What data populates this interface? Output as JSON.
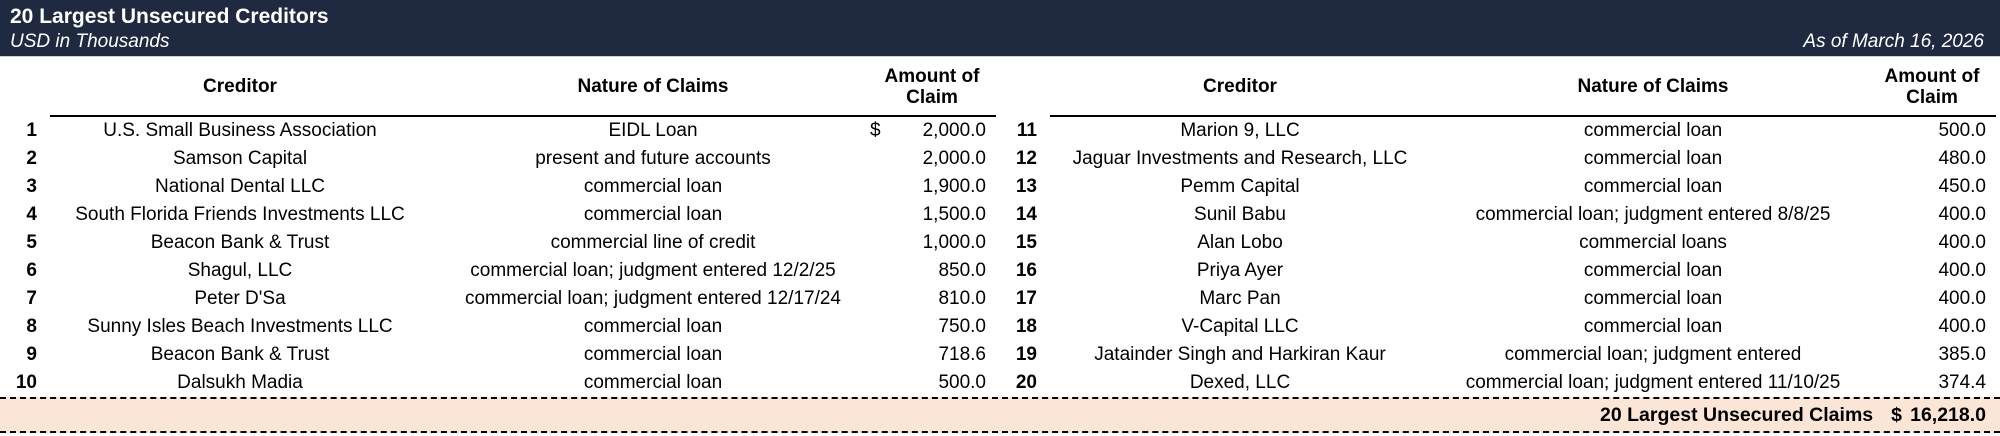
{
  "header": {
    "title": "20 Largest Unsecured Creditors",
    "subtitle": "USD in Thousands",
    "as_of": "As of March 16, 2026",
    "bg_color": "#1F2A40"
  },
  "columns": {
    "creditor": "Creditor",
    "nature": "Nature of Claims",
    "amount_line1": "Amount of",
    "amount_line2": "Claim"
  },
  "left_table": {
    "rows": [
      {
        "num": "1",
        "creditor": "U.S. Small Business Association",
        "nature": "EIDL Loan",
        "currency": "$",
        "amount": "2,000.0"
      },
      {
        "num": "2",
        "creditor": "Samson Capital",
        "nature": "present and future accounts",
        "currency": "",
        "amount": "2,000.0"
      },
      {
        "num": "3",
        "creditor": "National Dental LLC",
        "nature": "commercial loan",
        "currency": "",
        "amount": "1,900.0"
      },
      {
        "num": "4",
        "creditor": "South Florida Friends Investments LLC",
        "nature": "commercial loan",
        "currency": "",
        "amount": "1,500.0"
      },
      {
        "num": "5",
        "creditor": "Beacon Bank & Trust",
        "nature": "commercial line of credit",
        "currency": "",
        "amount": "1,000.0"
      },
      {
        "num": "6",
        "creditor": "Shagul, LLC",
        "nature": "commercial loan; judgment entered 12/2/25",
        "currency": "",
        "amount": "850.0"
      },
      {
        "num": "7",
        "creditor": "Peter D'Sa",
        "nature": "commercial loan; judgment entered 12/17/24",
        "currency": "",
        "amount": "810.0"
      },
      {
        "num": "8",
        "creditor": "Sunny Isles Beach Investments LLC",
        "nature": "commercial loan",
        "currency": "",
        "amount": "750.0"
      },
      {
        "num": "9",
        "creditor": "Beacon Bank & Trust",
        "nature": "commercial loan",
        "currency": "",
        "amount": "718.6"
      },
      {
        "num": "10",
        "creditor": "Dalsukh Madia",
        "nature": "commercial loan",
        "currency": "",
        "amount": "500.0"
      }
    ]
  },
  "right_table": {
    "rows": [
      {
        "num": "11",
        "creditor": "Marion 9, LLC",
        "nature": "commercial loan",
        "currency": "",
        "amount": "500.0"
      },
      {
        "num": "12",
        "creditor": "Jaguar Investments and Research, LLC",
        "nature": "commercial loan",
        "currency": "",
        "amount": "480.0"
      },
      {
        "num": "13",
        "creditor": "Pemm Capital",
        "nature": "commercial loan",
        "currency": "",
        "amount": "450.0"
      },
      {
        "num": "14",
        "creditor": "Sunil Babu",
        "nature": "commercial loan; judgment entered 8/8/25",
        "currency": "",
        "amount": "400.0"
      },
      {
        "num": "15",
        "creditor": "Alan Lobo",
        "nature": "commercial loans",
        "currency": "",
        "amount": "400.0"
      },
      {
        "num": "16",
        "creditor": "Priya Ayer",
        "nature": "commercial loan",
        "currency": "",
        "amount": "400.0"
      },
      {
        "num": "17",
        "creditor": "Marc Pan",
        "nature": "commercial loan",
        "currency": "",
        "amount": "400.0"
      },
      {
        "num": "18",
        "creditor": "V-Capital LLC",
        "nature": "commercial loan",
        "currency": "",
        "amount": "400.0"
      },
      {
        "num": "19",
        "creditor": "Jatainder Singh and Harkiran Kaur",
        "nature": "commercial loan; judgment entered",
        "currency": "",
        "amount": "385.0"
      },
      {
        "num": "20",
        "creditor": "Dexed, LLC",
        "nature": "commercial loan; judgment entered 11/10/25",
        "currency": "",
        "amount": "374.4"
      }
    ]
  },
  "footer": {
    "label": "20 Largest Unsecured Claims",
    "currency": "$",
    "total": "16,218.0",
    "bg_color": "#FBE5D6"
  }
}
